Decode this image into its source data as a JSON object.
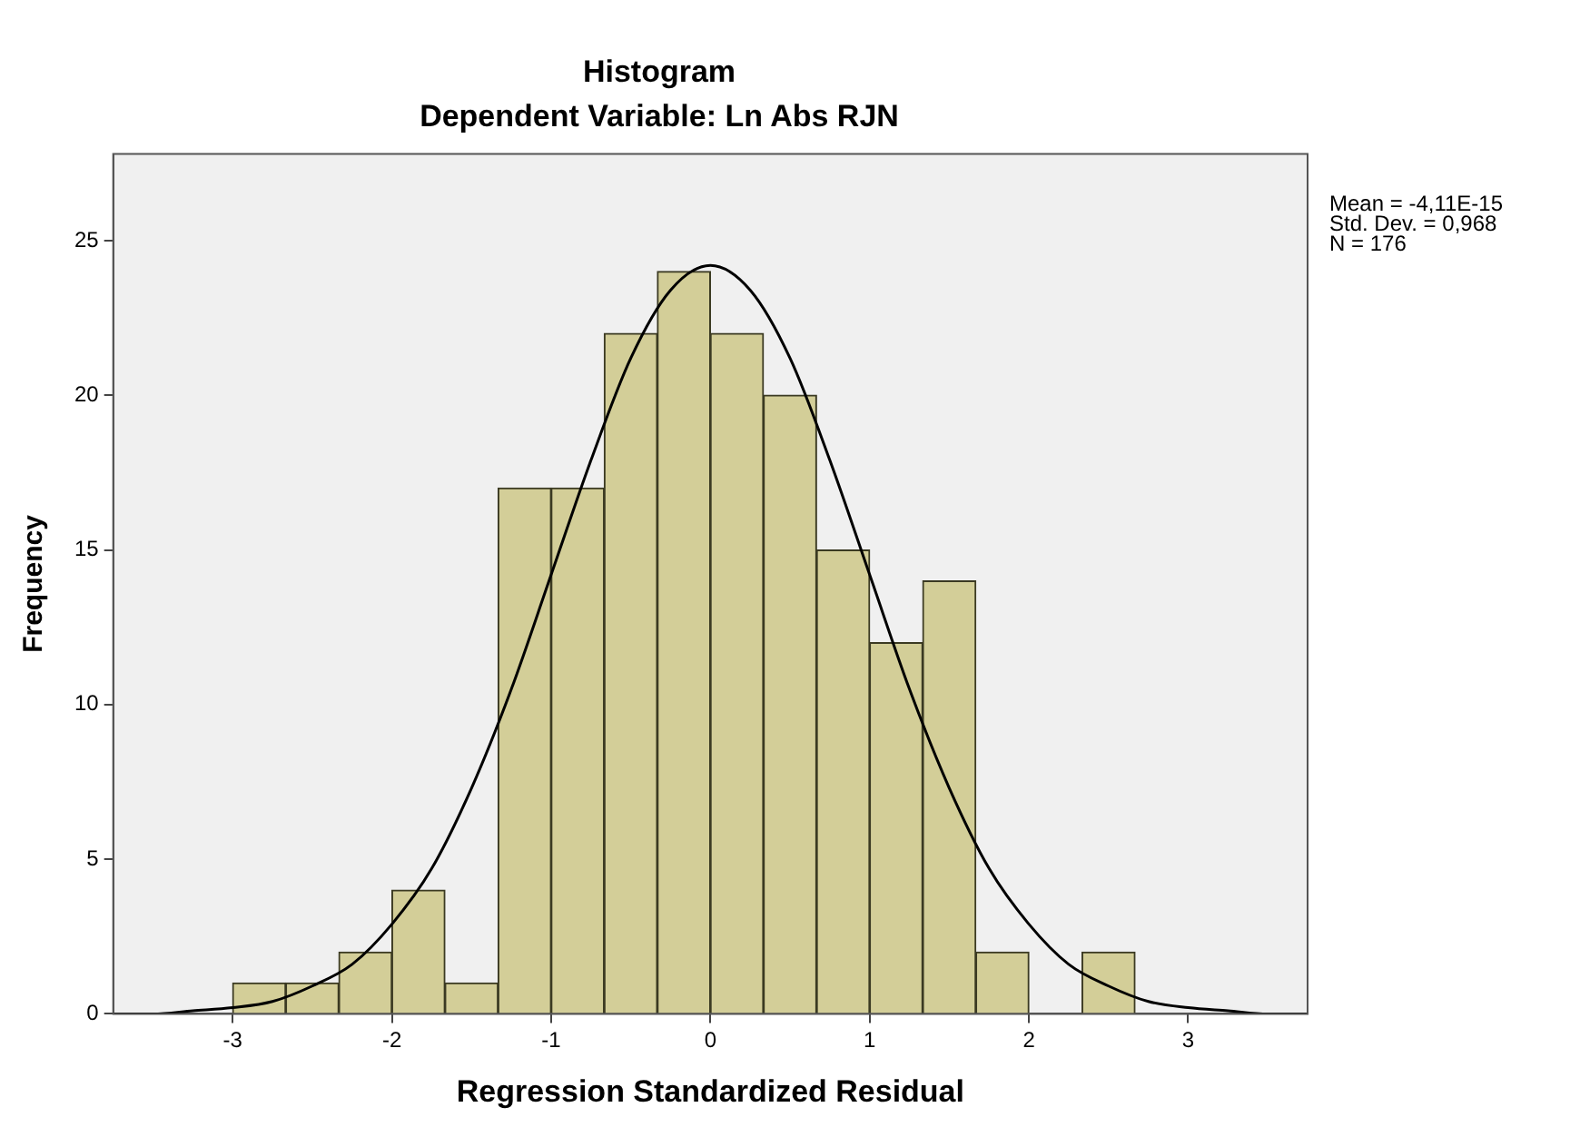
{
  "chart_data": {
    "type": "histogram",
    "title": "Histogram",
    "subtitle": "Dependent Variable: Ln Abs RJN",
    "xlabel": "Regression Standardized Residual",
    "ylabel": "Frequency",
    "bins": [
      -3,
      -2.667,
      -2.333,
      -2,
      -1.667,
      -1.333,
      -1,
      -0.667,
      -0.333,
      0,
      0.333,
      0.667,
      1,
      1.333,
      1.667,
      2,
      2.333,
      2.667
    ],
    "series": [
      {
        "color": "#d3ce98",
        "values": [
          1,
          1,
          2,
          4,
          1,
          17,
          17,
          22,
          24,
          22,
          20,
          15,
          12,
          14,
          2,
          0,
          2
        ]
      },
      {
        "type": "line",
        "color": "#000000",
        "x": [
          -3.75,
          -3.5,
          -3.25,
          -3,
          -2.75,
          -2.5,
          -2.25,
          -2,
          -1.75,
          -1.5,
          -1.25,
          -1,
          -0.75,
          -0.5,
          -0.25,
          0,
          0.25,
          0.5,
          0.75,
          1,
          1.25,
          1.5,
          1.75,
          2,
          2.25,
          2.5,
          2.75,
          3,
          3.25,
          3.5,
          3.75
        ],
        "values": [
          0,
          0,
          0.1,
          0.2,
          0.4,
          0.9,
          1.6,
          2.9,
          4.7,
          7.3,
          10.5,
          14.2,
          17.9,
          21.2,
          23.4,
          24.2,
          23.4,
          21.2,
          17.9,
          14.2,
          10.5,
          7.3,
          4.7,
          2.9,
          1.6,
          0.9,
          0.4,
          0.2,
          0.1,
          0,
          0
        ]
      }
    ],
    "xlim": [
      -3.75,
      3.75
    ],
    "xticks": [
      -3,
      -2,
      -1,
      0,
      1,
      2,
      3
    ],
    "ylim": [
      0,
      27.8
    ],
    "yticks": [
      0,
      5,
      10,
      15,
      20,
      25
    ],
    "grid": false,
    "legend": false,
    "marker": "none",
    "line_style": "solid",
    "annotations": [
      "Mean = -4,11E-15",
      "Std. Dev. = 0,968",
      "N = 176"
    ]
  }
}
